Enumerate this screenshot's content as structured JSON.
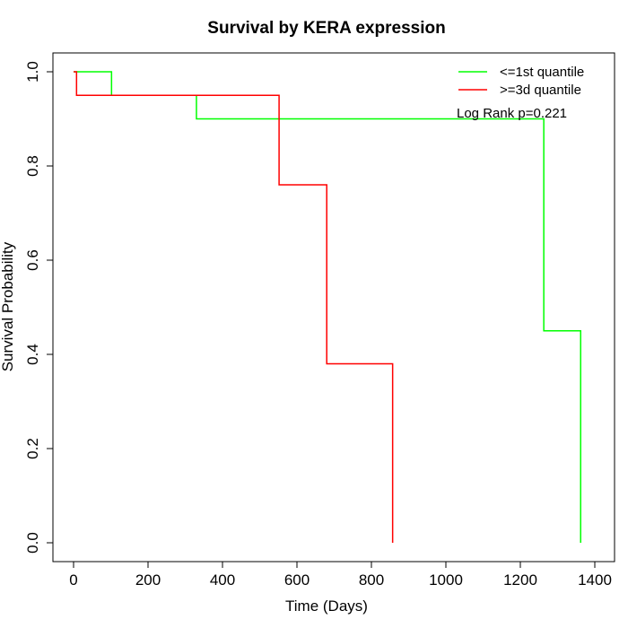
{
  "chart_data": {
    "type": "line",
    "title": "Survival by KERA expression",
    "xlabel": "Time (Days)",
    "ylabel": "Survival Probability",
    "xlim": [
      0,
      1400
    ],
    "ylim": [
      0,
      1.0
    ],
    "x_ticks": [
      "0",
      "200",
      "400",
      "600",
      "800",
      "1000",
      "1200",
      "1400"
    ],
    "y_ticks": [
      "0.0",
      "0.2",
      "0.4",
      "0.6",
      "0.8",
      "1.0"
    ],
    "grid": false,
    "legend_position": "top-right",
    "annotation": "Log Rank p=0.221",
    "series": [
      {
        "name": "<=1st quantile",
        "color": "#00ff00",
        "step": true,
        "x": [
          0,
          102,
          330,
          1263,
          1362
        ],
        "y": [
          1.0,
          0.95,
          0.9,
          0.45,
          0.0
        ]
      },
      {
        "name": ">=3d quantile",
        "color": "#ff0000",
        "step": true,
        "x": [
          0,
          8,
          552,
          680,
          857
        ],
        "y": [
          1.0,
          0.95,
          0.76,
          0.38,
          0.0
        ]
      }
    ]
  }
}
